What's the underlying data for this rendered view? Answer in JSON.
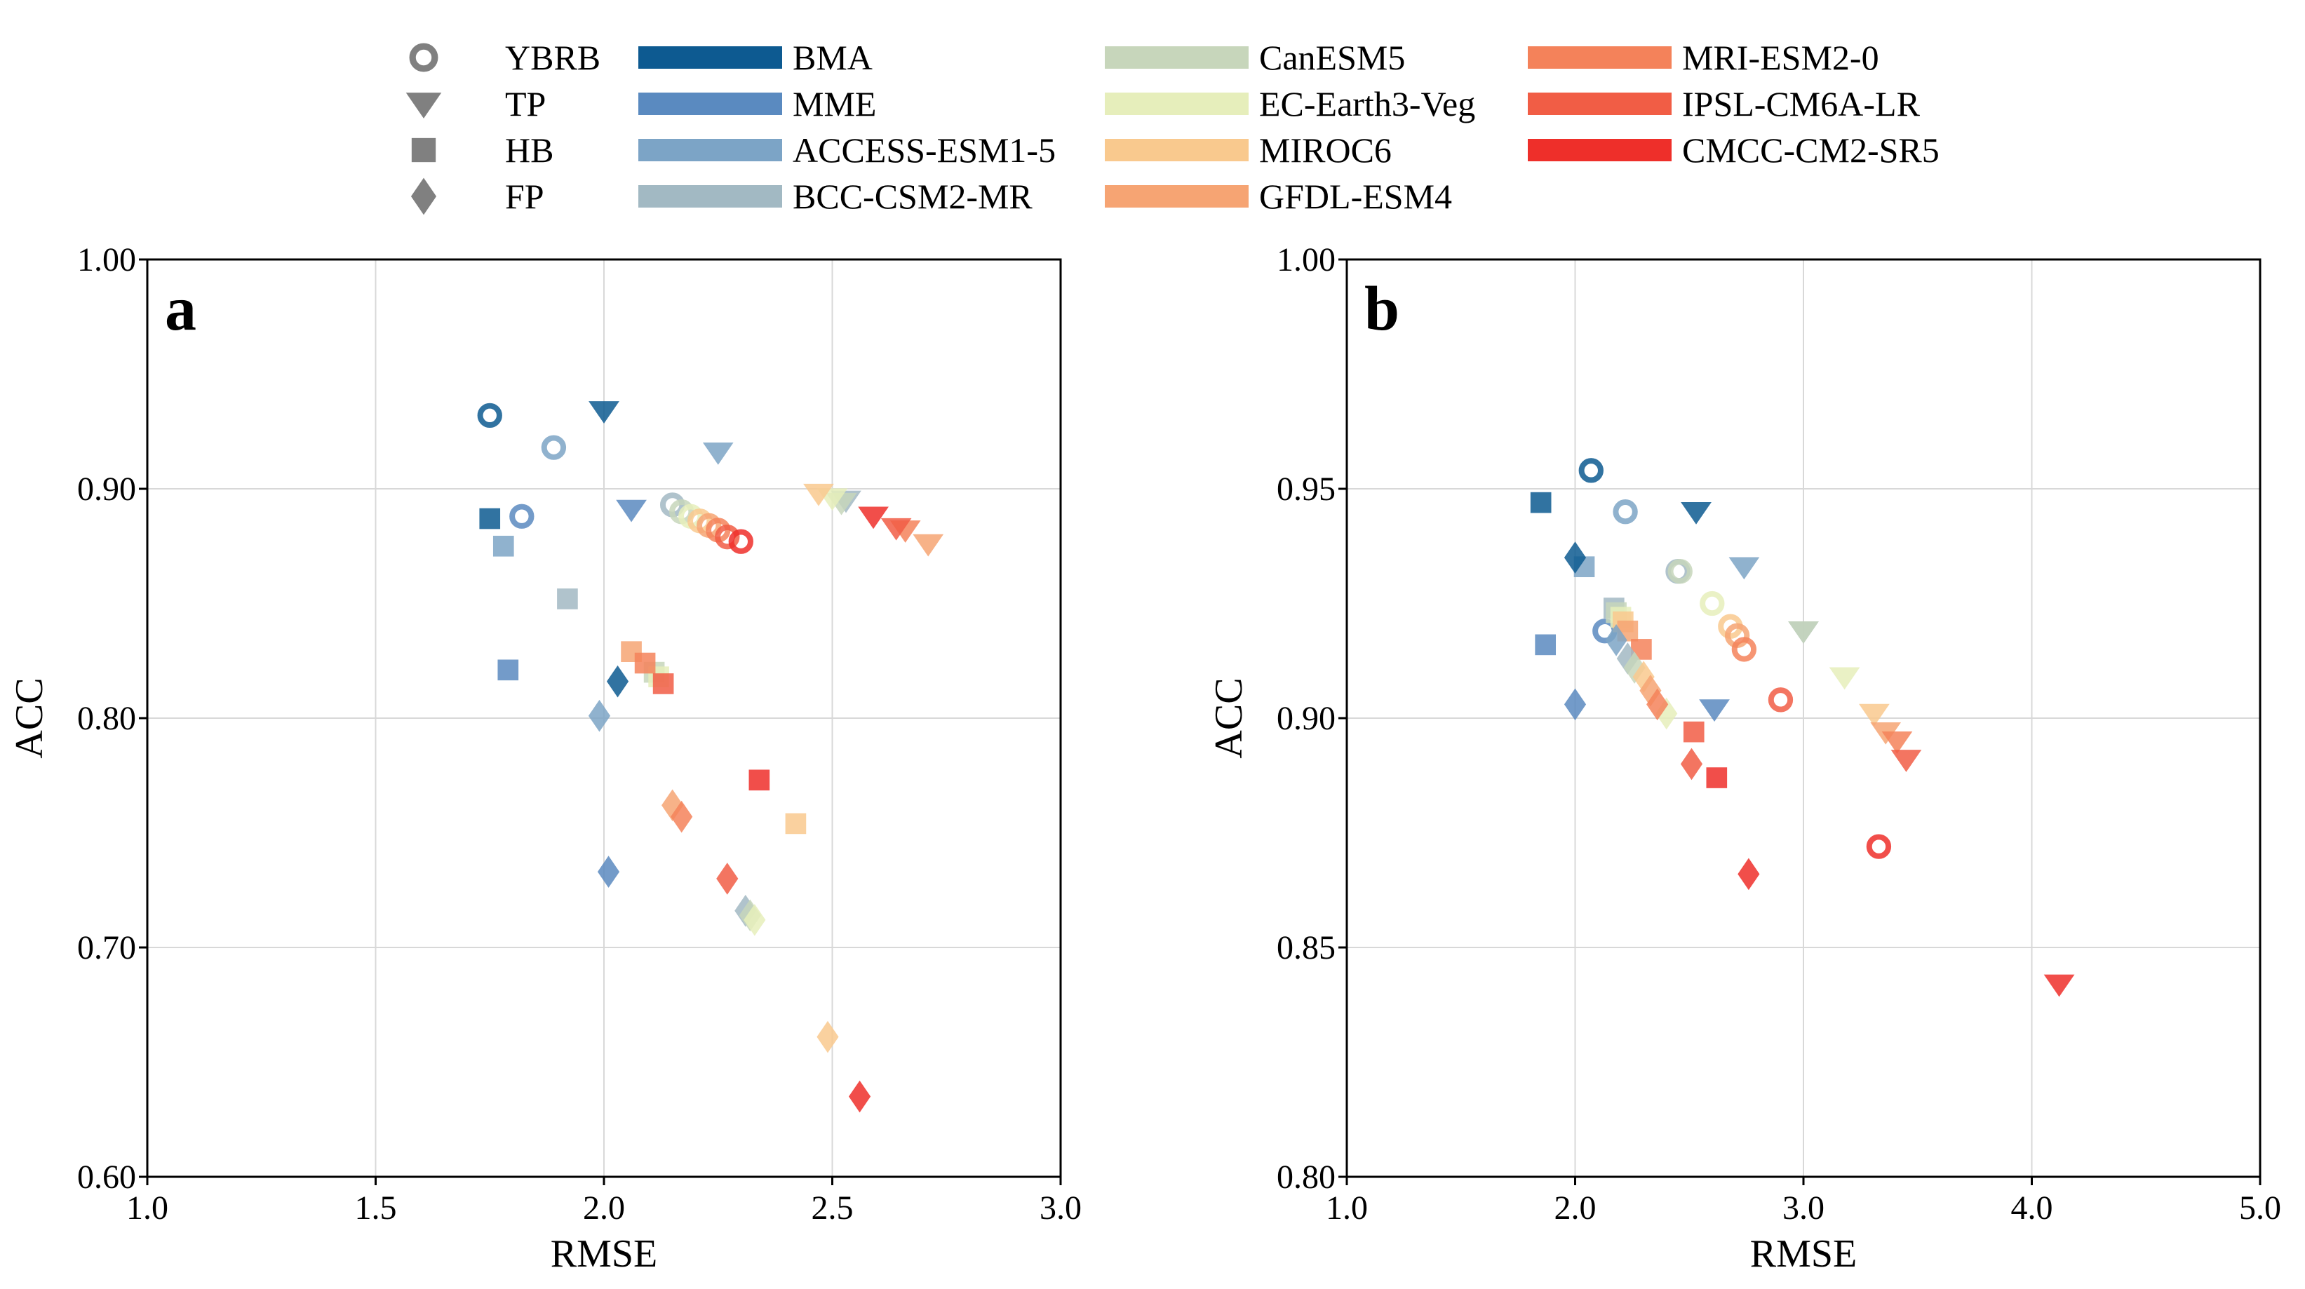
{
  "legend": {
    "regions": [
      {
        "name": "YBRB",
        "marker": "circle"
      },
      {
        "name": "TP",
        "marker": "triangle-down"
      },
      {
        "name": "HB",
        "marker": "square"
      },
      {
        "name": "FP",
        "marker": "diamond"
      }
    ],
    "models": [
      {
        "name": "BMA",
        "color": "#0d5a91"
      },
      {
        "name": "MME",
        "color": "#5a8ac0"
      },
      {
        "name": "ACCESS-ESM1-5",
        "color": "#7ca4c6"
      },
      {
        "name": "BCC-CSM2-MR",
        "color": "#a2b9c3"
      },
      {
        "name": "CanESM5",
        "color": "#c7d6bb"
      },
      {
        "name": "EC-Earth3-Veg",
        "color": "#e6eebb"
      },
      {
        "name": "MIROC6",
        "color": "#f9c98e"
      },
      {
        "name": "GFDL-ESM4",
        "color": "#f6a473"
      },
      {
        "name": "MRI-ESM2-0",
        "color": "#f4825a"
      },
      {
        "name": "IPSL-CM6A-LR",
        "color": "#f15d45"
      },
      {
        "name": "CMCC-CM2-SR5",
        "color": "#ee2f2a"
      }
    ],
    "region_marker_color": "#808080"
  },
  "chart_data": [
    {
      "type": "scatter",
      "panel_label": "a",
      "xlabel": "RMSE",
      "ylabel": "ACC",
      "xlim": [
        1.0,
        3.0
      ],
      "ylim": [
        0.6,
        1.0
      ],
      "xticks": [
        "1.0",
        "1.5",
        "2.0",
        "2.5",
        "3.0"
      ],
      "yticks": [
        "0.60",
        "0.70",
        "0.80",
        "0.90",
        "1.00"
      ],
      "xtick_values": [
        1.0,
        1.5,
        2.0,
        2.5,
        3.0
      ],
      "ytick_values": [
        0.6,
        0.7,
        0.8,
        0.9,
        1.0
      ],
      "grid": true,
      "points": [
        {
          "region": "YBRB",
          "model": "BMA",
          "x": 1.75,
          "y": 0.932
        },
        {
          "region": "YBRB",
          "model": "MME",
          "x": 1.82,
          "y": 0.888
        },
        {
          "region": "YBRB",
          "model": "ACCESS-ESM1-5",
          "x": 1.89,
          "y": 0.918
        },
        {
          "region": "YBRB",
          "model": "BCC-CSM2-MR",
          "x": 2.15,
          "y": 0.893
        },
        {
          "region": "YBRB",
          "model": "CanESM5",
          "x": 2.17,
          "y": 0.89
        },
        {
          "region": "YBRB",
          "model": "EC-Earth3-Veg",
          "x": 2.19,
          "y": 0.888
        },
        {
          "region": "YBRB",
          "model": "MIROC6",
          "x": 2.21,
          "y": 0.886
        },
        {
          "region": "YBRB",
          "model": "GFDL-ESM4",
          "x": 2.23,
          "y": 0.884
        },
        {
          "region": "YBRB",
          "model": "MRI-ESM2-0",
          "x": 2.25,
          "y": 0.882
        },
        {
          "region": "YBRB",
          "model": "IPSL-CM6A-LR",
          "x": 2.27,
          "y": 0.879
        },
        {
          "region": "YBRB",
          "model": "CMCC-CM2-SR5",
          "x": 2.3,
          "y": 0.877
        },
        {
          "region": "TP",
          "model": "BMA",
          "x": 2.0,
          "y": 0.934
        },
        {
          "region": "TP",
          "model": "MME",
          "x": 2.06,
          "y": 0.891
        },
        {
          "region": "TP",
          "model": "ACCESS-ESM1-5",
          "x": 2.25,
          "y": 0.916
        },
        {
          "region": "TP",
          "model": "BCC-CSM2-MR",
          "x": 2.53,
          "y": 0.895
        },
        {
          "region": "TP",
          "model": "CanESM5",
          "x": 2.52,
          "y": 0.894
        },
        {
          "region": "TP",
          "model": "EC-Earth3-Veg",
          "x": 2.5,
          "y": 0.896
        },
        {
          "region": "TP",
          "model": "MIROC6",
          "x": 2.47,
          "y": 0.898
        },
        {
          "region": "TP",
          "model": "GFDL-ESM4",
          "x": 2.71,
          "y": 0.876
        },
        {
          "region": "TP",
          "model": "MRI-ESM2-0",
          "x": 2.66,
          "y": 0.882
        },
        {
          "region": "TP",
          "model": "IPSL-CM6A-LR",
          "x": 2.64,
          "y": 0.883
        },
        {
          "region": "TP",
          "model": "CMCC-CM2-SR5",
          "x": 2.59,
          "y": 0.888
        },
        {
          "region": "HB",
          "model": "BMA",
          "x": 1.75,
          "y": 0.887
        },
        {
          "region": "HB",
          "model": "MME",
          "x": 1.79,
          "y": 0.821
        },
        {
          "region": "HB",
          "model": "ACCESS-ESM1-5",
          "x": 1.78,
          "y": 0.875
        },
        {
          "region": "HB",
          "model": "BCC-CSM2-MR",
          "x": 1.92,
          "y": 0.852
        },
        {
          "region": "HB",
          "model": "CanESM5",
          "x": 2.11,
          "y": 0.82
        },
        {
          "region": "HB",
          "model": "EC-Earth3-Veg",
          "x": 2.12,
          "y": 0.818
        },
        {
          "region": "HB",
          "model": "MIROC6",
          "x": 2.42,
          "y": 0.754
        },
        {
          "region": "HB",
          "model": "GFDL-ESM4",
          "x": 2.06,
          "y": 0.829
        },
        {
          "region": "HB",
          "model": "MRI-ESM2-0",
          "x": 2.09,
          "y": 0.824
        },
        {
          "region": "HB",
          "model": "IPSL-CM6A-LR",
          "x": 2.13,
          "y": 0.815
        },
        {
          "region": "HB",
          "model": "CMCC-CM2-SR5",
          "x": 2.34,
          "y": 0.773
        },
        {
          "region": "FP",
          "model": "BMA",
          "x": 2.03,
          "y": 0.816
        },
        {
          "region": "FP",
          "model": "MME",
          "x": 2.01,
          "y": 0.733
        },
        {
          "region": "FP",
          "model": "ACCESS-ESM1-5",
          "x": 1.99,
          "y": 0.801
        },
        {
          "region": "FP",
          "model": "BCC-CSM2-MR",
          "x": 2.31,
          "y": 0.716
        },
        {
          "region": "FP",
          "model": "CanESM5",
          "x": 2.32,
          "y": 0.714
        },
        {
          "region": "FP",
          "model": "EC-Earth3-Veg",
          "x": 2.33,
          "y": 0.712
        },
        {
          "region": "FP",
          "model": "MIROC6",
          "x": 2.49,
          "y": 0.661
        },
        {
          "region": "FP",
          "model": "GFDL-ESM4",
          "x": 2.15,
          "y": 0.762
        },
        {
          "region": "FP",
          "model": "MRI-ESM2-0",
          "x": 2.17,
          "y": 0.757
        },
        {
          "region": "FP",
          "model": "IPSL-CM6A-LR",
          "x": 2.27,
          "y": 0.73
        },
        {
          "region": "FP",
          "model": "CMCC-CM2-SR5",
          "x": 2.56,
          "y": 0.635
        }
      ]
    },
    {
      "type": "scatter",
      "panel_label": "b",
      "xlabel": "RMSE",
      "ylabel": "ACC",
      "xlim": [
        1.0,
        5.0
      ],
      "ylim": [
        0.8,
        1.0
      ],
      "xticks": [
        "1.0",
        "2.0",
        "3.0",
        "4.0",
        "5.0"
      ],
      "yticks": [
        "0.80",
        "0.85",
        "0.90",
        "0.95",
        "1.00"
      ],
      "xtick_values": [
        1.0,
        2.0,
        3.0,
        4.0,
        5.0
      ],
      "ytick_values": [
        0.8,
        0.85,
        0.9,
        0.95,
        1.0
      ],
      "grid": true,
      "points": [
        {
          "region": "YBRB",
          "model": "BMA",
          "x": 2.07,
          "y": 0.954
        },
        {
          "region": "YBRB",
          "model": "MME",
          "x": 2.13,
          "y": 0.919
        },
        {
          "region": "YBRB",
          "model": "ACCESS-ESM1-5",
          "x": 2.22,
          "y": 0.945
        },
        {
          "region": "YBRB",
          "model": "BCC-CSM2-MR",
          "x": 2.45,
          "y": 0.932
        },
        {
          "region": "YBRB",
          "model": "CanESM5",
          "x": 2.46,
          "y": 0.932
        },
        {
          "region": "YBRB",
          "model": "EC-Earth3-Veg",
          "x": 2.6,
          "y": 0.925
        },
        {
          "region": "YBRB",
          "model": "MIROC6",
          "x": 2.68,
          "y": 0.92
        },
        {
          "region": "YBRB",
          "model": "GFDL-ESM4",
          "x": 2.71,
          "y": 0.918
        },
        {
          "region": "YBRB",
          "model": "MRI-ESM2-0",
          "x": 2.74,
          "y": 0.915
        },
        {
          "region": "YBRB",
          "model": "IPSL-CM6A-LR",
          "x": 2.9,
          "y": 0.904
        },
        {
          "region": "YBRB",
          "model": "CMCC-CM2-SR5",
          "x": 3.33,
          "y": 0.872
        },
        {
          "region": "TP",
          "model": "BMA",
          "x": 2.53,
          "y": 0.945
        },
        {
          "region": "TP",
          "model": "MME",
          "x": 2.61,
          "y": 0.902
        },
        {
          "region": "TP",
          "model": "ACCESS-ESM1-5",
          "x": 2.74,
          "y": 0.933
        },
        {
          "region": "TP",
          "model": "BCC-CSM2-MR",
          "x": 3.0,
          "y": 0.919
        },
        {
          "region": "TP",
          "model": "CanESM5",
          "x": 3.0,
          "y": 0.919
        },
        {
          "region": "TP",
          "model": "EC-Earth3-Veg",
          "x": 3.18,
          "y": 0.909
        },
        {
          "region": "TP",
          "model": "MIROC6",
          "x": 3.31,
          "y": 0.901
        },
        {
          "region": "TP",
          "model": "GFDL-ESM4",
          "x": 3.36,
          "y": 0.897
        },
        {
          "region": "TP",
          "model": "MRI-ESM2-0",
          "x": 3.41,
          "y": 0.895
        },
        {
          "region": "TP",
          "model": "IPSL-CM6A-LR",
          "x": 3.45,
          "y": 0.891
        },
        {
          "region": "TP",
          "model": "CMCC-CM2-SR5",
          "x": 4.12,
          "y": 0.842
        },
        {
          "region": "HB",
          "model": "BMA",
          "x": 1.85,
          "y": 0.947
        },
        {
          "region": "HB",
          "model": "MME",
          "x": 1.87,
          "y": 0.916
        },
        {
          "region": "HB",
          "model": "ACCESS-ESM1-5",
          "x": 2.04,
          "y": 0.933
        },
        {
          "region": "HB",
          "model": "BCC-CSM2-MR",
          "x": 2.17,
          "y": 0.924
        },
        {
          "region": "HB",
          "model": "CanESM5",
          "x": 2.18,
          "y": 0.923
        },
        {
          "region": "HB",
          "model": "EC-Earth3-Veg",
          "x": 2.2,
          "y": 0.922
        },
        {
          "region": "HB",
          "model": "MIROC6",
          "x": 2.21,
          "y": 0.921
        },
        {
          "region": "HB",
          "model": "GFDL-ESM4",
          "x": 2.23,
          "y": 0.919
        },
        {
          "region": "HB",
          "model": "MRI-ESM2-0",
          "x": 2.29,
          "y": 0.915
        },
        {
          "region": "HB",
          "model": "IPSL-CM6A-LR",
          "x": 2.52,
          "y": 0.897
        },
        {
          "region": "HB",
          "model": "CMCC-CM2-SR5",
          "x": 2.62,
          "y": 0.887
        },
        {
          "region": "FP",
          "model": "BMA",
          "x": 2.0,
          "y": 0.935
        },
        {
          "region": "FP",
          "model": "MME",
          "x": 2.0,
          "y": 0.903
        },
        {
          "region": "FP",
          "model": "ACCESS-ESM1-5",
          "x": 2.18,
          "y": 0.917
        },
        {
          "region": "FP",
          "model": "BCC-CSM2-MR",
          "x": 2.23,
          "y": 0.913
        },
        {
          "region": "FP",
          "model": "CanESM5",
          "x": 2.26,
          "y": 0.911
        },
        {
          "region": "FP",
          "model": "EC-Earth3-Veg",
          "x": 2.4,
          "y": 0.901
        },
        {
          "region": "FP",
          "model": "MIROC6",
          "x": 2.3,
          "y": 0.909
        },
        {
          "region": "FP",
          "model": "GFDL-ESM4",
          "x": 2.33,
          "y": 0.906
        },
        {
          "region": "FP",
          "model": "MRI-ESM2-0",
          "x": 2.36,
          "y": 0.903
        },
        {
          "region": "FP",
          "model": "IPSL-CM6A-LR",
          "x": 2.51,
          "y": 0.89
        },
        {
          "region": "FP",
          "model": "CMCC-CM2-SR5",
          "x": 2.76,
          "y": 0.866
        }
      ]
    }
  ]
}
